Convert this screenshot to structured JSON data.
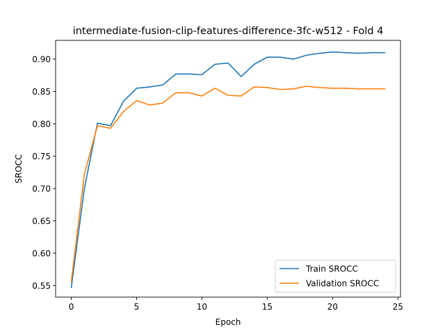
{
  "chart_data": {
    "type": "line",
    "title": "intermediate-fusion-clip-features-difference-3fc-w512 - Fold 4",
    "xlabel": "Epoch",
    "ylabel": "SROCC",
    "xlim": [
      -1.2,
      25.2
    ],
    "ylim": [
      0.532,
      0.929
    ],
    "xticks": [
      0,
      5,
      10,
      15,
      20,
      25
    ],
    "xtick_labels": [
      "0",
      "5",
      "10",
      "15",
      "20",
      "25"
    ],
    "yticks": [
      0.55,
      0.6,
      0.65,
      0.7,
      0.75,
      0.8,
      0.85,
      0.9
    ],
    "ytick_labels": [
      "0.55",
      "0.60",
      "0.65",
      "0.70",
      "0.75",
      "0.80",
      "0.85",
      "0.90"
    ],
    "grid": false,
    "legend_position": "lower-right",
    "x": [
      0,
      1,
      2,
      3,
      4,
      5,
      6,
      7,
      8,
      9,
      10,
      11,
      12,
      13,
      14,
      15,
      16,
      17,
      18,
      19,
      20,
      21,
      22,
      23,
      24
    ],
    "series": [
      {
        "name": "Train SROCC",
        "color": "#1f77b4",
        "values": [
          0.547,
          0.7,
          0.801,
          0.797,
          0.835,
          0.855,
          0.857,
          0.86,
          0.877,
          0.877,
          0.876,
          0.892,
          0.894,
          0.873,
          0.892,
          0.903,
          0.903,
          0.9,
          0.906,
          0.909,
          0.911,
          0.91,
          0.909,
          0.91,
          0.91
        ]
      },
      {
        "name": "Validation SROCC",
        "color": "#ff7f0e",
        "values": [
          0.556,
          0.722,
          0.797,
          0.793,
          0.819,
          0.836,
          0.829,
          0.832,
          0.848,
          0.848,
          0.843,
          0.855,
          0.844,
          0.843,
          0.857,
          0.856,
          0.853,
          0.854,
          0.858,
          0.856,
          0.855,
          0.855,
          0.854,
          0.854,
          0.854
        ]
      }
    ]
  }
}
